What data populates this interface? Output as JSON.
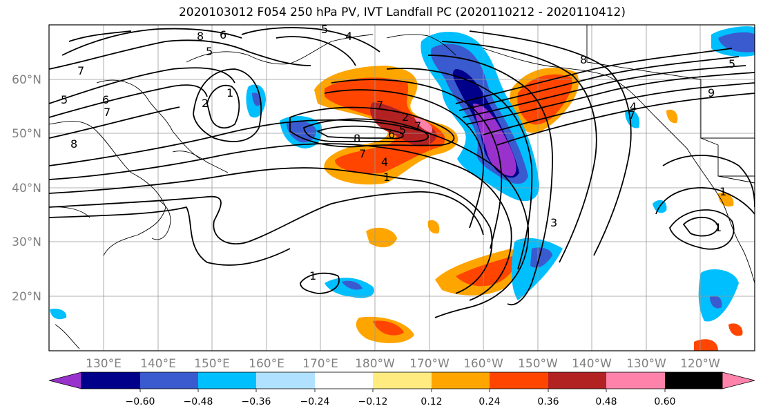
{
  "title": "2020103012 F054 250 hPa PV, IVT Landfall PC (2020110212 - 2020110412)",
  "map": {
    "lat_labels": [
      {
        "label": "60°N",
        "lat": 60
      },
      {
        "label": "50°N",
        "lat": 50
      },
      {
        "label": "40°N",
        "lat": 40
      },
      {
        "label": "30°N",
        "lat": 30
      },
      {
        "label": "20°N",
        "lat": 20
      }
    ],
    "lon_labels": [
      {
        "label": "130°E",
        "lon": 130
      },
      {
        "label": "140°E",
        "lon": 140
      },
      {
        "label": "150°E",
        "lon": 150
      },
      {
        "label": "160°E",
        "lon": 160
      },
      {
        "label": "170°E",
        "lon": 170
      },
      {
        "label": "180°W",
        "lon": 180
      },
      {
        "label": "170°W",
        "lon": 190
      },
      {
        "label": "160°W",
        "lon": 200
      },
      {
        "label": "150°W",
        "lon": 210
      },
      {
        "label": "140°W",
        "lon": 220
      },
      {
        "label": "130°W",
        "lon": 230
      },
      {
        "label": "120°W",
        "lon": 240
      }
    ],
    "contour_labels": [
      "8",
      "6",
      "5",
      "4",
      "5",
      "7",
      "5",
      "6",
      "7",
      "8",
      "2",
      "1",
      "7",
      "2",
      "7",
      "8",
      "6",
      "5",
      "7",
      "4",
      "1",
      "1",
      "3",
      "8",
      "7",
      "9",
      "1",
      "1",
      "5",
      "4"
    ]
  },
  "colorbar": {
    "colors": [
      "#9932cc",
      "#00008b",
      "#3a5bcf",
      "#00bfff",
      "#b0e2ff",
      "#ffffff",
      "#ffeb80",
      "#ffa500",
      "#ff4500",
      "#b22222",
      "#ff82ab"
    ],
    "ticks": [
      "−0.60",
      "−0.48",
      "−0.36",
      "−0.24",
      "−0.12",
      "0.12",
      "0.24",
      "0.36",
      "0.48",
      "0.60"
    ]
  },
  "colors": {
    "neg_strong": "#6a0dad",
    "neg": "#1f3fbf",
    "pos": "#ff8c00",
    "pos_strong": "#b22222"
  }
}
